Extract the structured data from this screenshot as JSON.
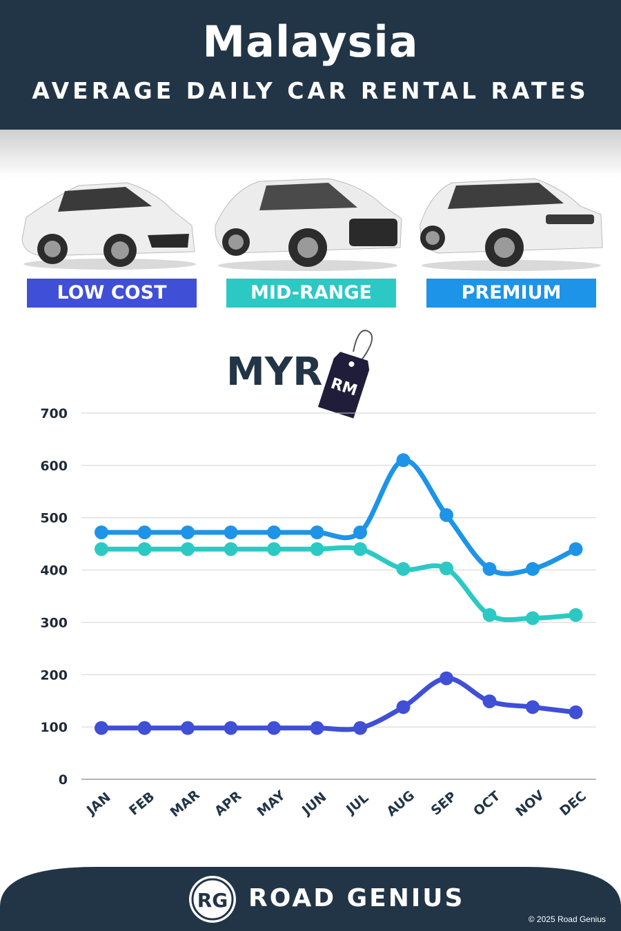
{
  "header": {
    "title": "Malaysia",
    "subtitle": "AVERAGE DAILY CAR RENTAL RATES"
  },
  "categories": {
    "low_cost": {
      "label": "LOW COST",
      "color": "#3f4fd6"
    },
    "mid_range": {
      "label": "MID-RANGE",
      "color": "#2cc9c4"
    },
    "premium": {
      "label": "PREMIUM",
      "color": "#1d94e8"
    }
  },
  "currency": {
    "label": "MYR",
    "tag_text": "RM"
  },
  "chart_data": {
    "type": "line",
    "title": "AVERAGE DAILY CAR RENTAL RATES",
    "ylabel": "MYR",
    "xlabel": "",
    "x": [
      "JAN",
      "FEB",
      "MAR",
      "APR",
      "MAY",
      "JUN",
      "JUL",
      "AUG",
      "SEP",
      "OCT",
      "NOV",
      "DEC"
    ],
    "yticks": [
      0,
      100,
      200,
      300,
      400,
      500,
      600,
      700
    ],
    "ylim": [
      0,
      700
    ],
    "grid": true,
    "series": [
      {
        "name": "PREMIUM",
        "color": "#1d94e8",
        "values": [
          472,
          472,
          472,
          472,
          472,
          472,
          472,
          610,
          505,
          402,
          402,
          440
        ]
      },
      {
        "name": "MID-RANGE",
        "color": "#2cc9c4",
        "values": [
          440,
          440,
          440,
          440,
          440,
          440,
          440,
          402,
          403,
          314,
          308,
          314
        ]
      },
      {
        "name": "LOW COST",
        "color": "#3f4fd6",
        "values": [
          98,
          98,
          98,
          98,
          98,
          98,
          98,
          138,
          193,
          149,
          138,
          128
        ]
      }
    ]
  },
  "footer": {
    "logo_text": "RG",
    "brand": "ROAD GENIUS",
    "copyright": "© 2025 Road Genius"
  }
}
